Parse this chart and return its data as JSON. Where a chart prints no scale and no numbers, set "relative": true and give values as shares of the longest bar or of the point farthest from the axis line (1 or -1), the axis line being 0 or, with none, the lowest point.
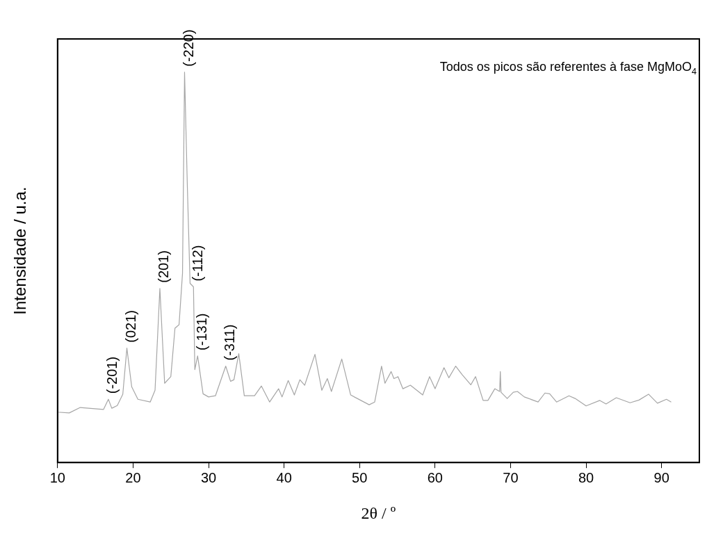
{
  "chart_data": {
    "type": "line",
    "relative": true,
    "xlabel": "2θ / º",
    "ylabel": "Intensidade / u.a.",
    "xlim": [
      10,
      95
    ],
    "xticks": [
      10,
      20,
      30,
      40,
      50,
      60,
      70,
      80,
      90
    ],
    "grid": false,
    "legend": false,
    "marker": "none",
    "line_style": "solid",
    "annotations": [
      "Todos os picos são referentes à fase MgMoO$_{4}$",
      {
        "text": "(-201)",
        "x": 16.73,
        "y": 0.162
      },
      {
        "text": "(021)",
        "x": 19.18,
        "y": 0.293
      },
      {
        "text": "(201)",
        "x": 23.55,
        "y": 0.446
      },
      {
        "text": "(-220)",
        "x": 26.82,
        "y": 1.0
      },
      {
        "text": "(-112)",
        "x": 28.0,
        "y": 0.45
      },
      {
        "text": "(-131)",
        "x": 28.55,
        "y": 0.273
      },
      {
        "text": "(-311)",
        "x": 32.27,
        "y": 0.247
      }
    ],
    "series": [
      {
        "color": "#a6a6a6",
        "x": [
          10.0,
          11.55,
          13.0,
          16.09,
          16.73,
          17.18,
          17.91,
          18.64,
          19.18,
          19.82,
          20.64,
          22.27,
          22.91,
          23.55,
          24.18,
          25.0,
          25.55,
          26.09,
          26.55,
          26.82,
          27.18,
          27.55,
          28.0,
          28.18,
          28.55,
          29.27,
          30.0,
          30.91,
          32.27,
          32.91,
          33.36,
          34.0,
          34.73,
          36.09,
          37.0,
          38.09,
          39.27,
          39.73,
          40.55,
          41.36,
          42.09,
          42.73,
          44.09,
          45.0,
          45.73,
          46.27,
          47.64,
          48.82,
          51.27,
          52.0,
          52.91,
          53.36,
          54.18,
          54.55,
          55.09,
          55.73,
          56.73,
          58.36,
          59.27,
          60.0,
          61.18,
          61.82,
          62.73,
          63.55,
          64.73,
          65.36,
          66.36,
          67.0,
          67.91,
          68.55,
          68.64,
          68.73,
          69.55,
          70.36,
          70.91,
          71.82,
          73.64,
          74.55,
          75.18,
          76.09,
          77.73,
          78.55,
          80.0,
          81.82,
          82.64,
          84.0,
          85.82,
          87.0,
          88.27,
          89.45,
          90.64,
          91.27
        ],
        "values": [
          0.129,
          0.127,
          0.141,
          0.136,
          0.162,
          0.139,
          0.146,
          0.175,
          0.293,
          0.194,
          0.162,
          0.155,
          0.185,
          0.446,
          0.203,
          0.22,
          0.344,
          0.353,
          0.485,
          1.0,
          0.714,
          0.459,
          0.45,
          0.238,
          0.273,
          0.176,
          0.168,
          0.171,
          0.247,
          0.208,
          0.212,
          0.279,
          0.171,
          0.171,
          0.196,
          0.155,
          0.189,
          0.168,
          0.21,
          0.173,
          0.212,
          0.198,
          0.277,
          0.185,
          0.215,
          0.182,
          0.265,
          0.173,
          0.148,
          0.155,
          0.247,
          0.203,
          0.233,
          0.215,
          0.22,
          0.189,
          0.198,
          0.173,
          0.22,
          0.189,
          0.243,
          0.217,
          0.247,
          0.226,
          0.199,
          0.22,
          0.159,
          0.159,
          0.189,
          0.182,
          0.233,
          0.18,
          0.164,
          0.18,
          0.182,
          0.168,
          0.155,
          0.178,
          0.176,
          0.155,
          0.171,
          0.164,
          0.145,
          0.159,
          0.15,
          0.166,
          0.153,
          0.16,
          0.175,
          0.152,
          0.162,
          0.155
        ]
      }
    ]
  }
}
